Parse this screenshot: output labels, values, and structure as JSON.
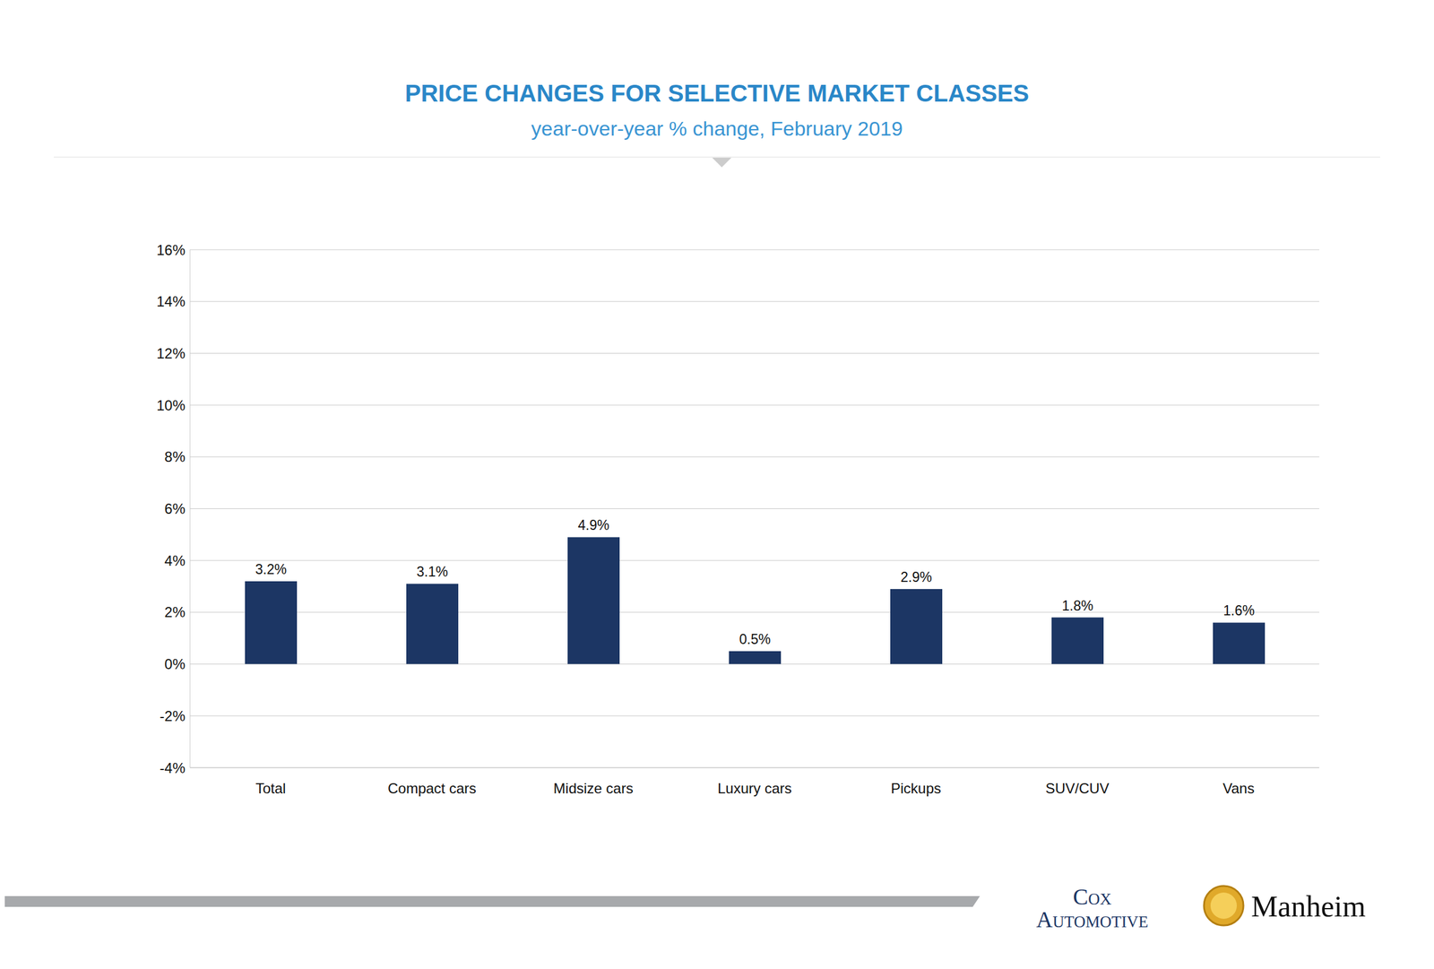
{
  "chart_data": {
    "type": "bar",
    "title": "PRICE CHANGES FOR SELECTIVE MARKET CLASSES",
    "subtitle": "year-over-year % change, February 2019",
    "categories": [
      "Total",
      "Compact cars",
      "Midsize cars",
      "Luxury cars",
      "Pickups",
      "SUV/CUV",
      "Vans"
    ],
    "values": [
      3.2,
      3.1,
      4.9,
      0.5,
      2.9,
      1.8,
      1.6
    ],
    "value_labels": [
      "3.2%",
      "3.1%",
      "4.9%",
      "0.5%",
      "2.9%",
      "1.8%",
      "1.6%"
    ],
    "color": "#1c3664",
    "ylim": [
      -4,
      16
    ],
    "yticks": [
      {
        "value": -4,
        "label": "-4%"
      },
      {
        "value": -2,
        "label": "-2%"
      },
      {
        "value": 0,
        "label": "0%"
      },
      {
        "value": 2,
        "label": "2%"
      },
      {
        "value": 4,
        "label": "4%"
      },
      {
        "value": 6,
        "label": "6%"
      },
      {
        "value": 8,
        "label": "8%"
      },
      {
        "value": 10,
        "label": "10%"
      },
      {
        "value": 12,
        "label": "12%"
      },
      {
        "value": 14,
        "label": "14%"
      },
      {
        "value": 16,
        "label": "16%"
      }
    ],
    "grid": true,
    "data_labels": true,
    "annotations": [
      "Cox Automotive",
      "Manheim"
    ]
  }
}
